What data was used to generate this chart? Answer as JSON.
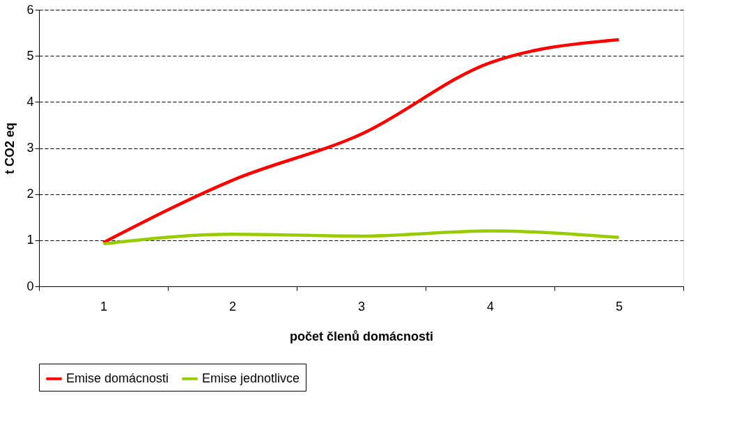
{
  "chart_data": {
    "type": "line",
    "xlabel": "počet členů domácnosti",
    "ylabel": "t CO2 eq",
    "categories": [
      "1",
      "2",
      "3",
      "4",
      "5"
    ],
    "series": [
      {
        "name": "Emise domácnosti",
        "color": "#ff0000",
        "values": [
          0.95,
          2.3,
          3.3,
          4.85,
          5.35
        ]
      },
      {
        "name": "Emise jednotlivce",
        "color": "#99cc00",
        "values": [
          0.92,
          1.13,
          1.09,
          1.2,
          1.06
        ]
      }
    ],
    "ylim": [
      0,
      6
    ],
    "yticks": [
      0,
      1,
      2,
      3,
      4,
      5,
      6
    ],
    "grid": "y",
    "legend": "bottom",
    "marker": "none",
    "line_style": "solid"
  }
}
